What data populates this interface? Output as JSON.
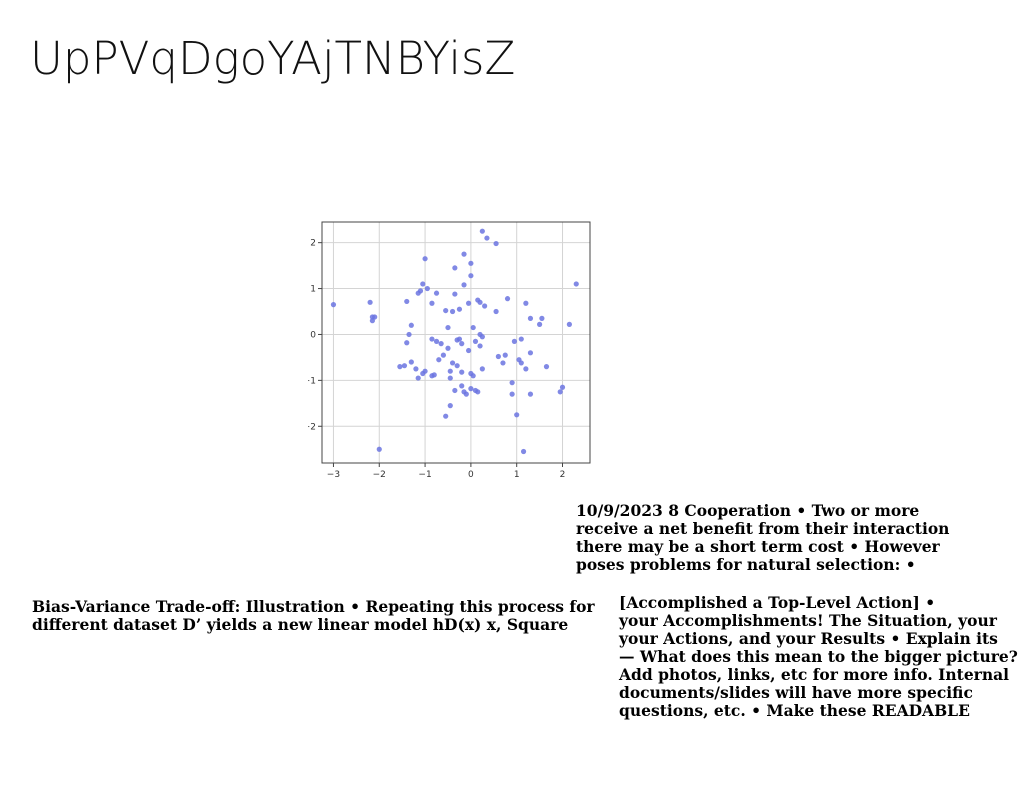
{
  "slide": {
    "title": "UpPVqDgoYAjTNBYisZ",
    "coop_text": "10/9/2023 8 Cooperation • Two or more\nreceive a net benefit from their interaction\nthere may be a short term cost • However\nposes problems for natural selection: •",
    "bias_text": "Bias-Variance Trade-off: Illustration • Repeating this process for\ndifferent dataset D’ yields a new linear model hD(x) x, Square",
    "acc_text": "[Accomplished a Top-Level Action] •\nyour Accomplishments! The Situation, your\nyour Actions, and your Results • Explain its\n— What does this mean to the bigger picture?\nAdd photos, links, etc for more info. Internal\ndocuments/slides will have more specific\nquestions, etc. • Make these READABLE"
  },
  "chart_data": {
    "type": "scatter",
    "xlim": [
      -3.25,
      2.6
    ],
    "ylim": [
      -2.8,
      2.45
    ],
    "xticks": [
      -3,
      -2,
      -1,
      0,
      1,
      2
    ],
    "yticks": [
      -2,
      -1,
      0,
      1,
      2
    ],
    "xtick_labels": [
      "−3",
      "−2",
      "−1",
      "0",
      "1",
      "2"
    ],
    "ytick_labels": [
      "−2",
      "−1",
      "0",
      "1",
      "2"
    ],
    "grid": true,
    "point_color": "#6b74e0",
    "points": [
      [
        -3.0,
        0.65
      ],
      [
        -2.2,
        0.7
      ],
      [
        -2.15,
        0.38
      ],
      [
        -2.1,
        0.38
      ],
      [
        -2.15,
        0.3
      ],
      [
        -2.0,
        -2.5
      ],
      [
        -1.55,
        -0.7
      ],
      [
        -1.45,
        -0.68
      ],
      [
        -1.4,
        -0.18
      ],
      [
        -1.4,
        0.72
      ],
      [
        -1.35,
        0.0
      ],
      [
        -1.3,
        0.2
      ],
      [
        -1.3,
        -0.6
      ],
      [
        -1.2,
        -0.75
      ],
      [
        -1.15,
        -0.95
      ],
      [
        -1.15,
        0.9
      ],
      [
        -1.1,
        0.95
      ],
      [
        -1.05,
        1.1
      ],
      [
        -1.0,
        -0.8
      ],
      [
        -1.05,
        -0.85
      ],
      [
        -1.0,
        1.65
      ],
      [
        -0.95,
        1.0
      ],
      [
        -0.85,
        -0.1
      ],
      [
        -0.85,
        0.68
      ],
      [
        -0.85,
        -0.9
      ],
      [
        -0.8,
        -0.88
      ],
      [
        -0.75,
        0.9
      ],
      [
        -0.75,
        -0.15
      ],
      [
        -0.7,
        -0.55
      ],
      [
        -0.65,
        -0.2
      ],
      [
        -0.6,
        -0.45
      ],
      [
        -0.55,
        0.52
      ],
      [
        -0.55,
        -1.78
      ],
      [
        -0.5,
        0.15
      ],
      [
        -0.5,
        -0.3
      ],
      [
        -0.45,
        -0.8
      ],
      [
        -0.45,
        -0.95
      ],
      [
        -0.45,
        -1.55
      ],
      [
        -0.4,
        -0.62
      ],
      [
        -0.35,
        -1.22
      ],
      [
        -0.35,
        1.45
      ],
      [
        -0.35,
        0.88
      ],
      [
        -0.4,
        0.5
      ],
      [
        -0.3,
        -0.12
      ],
      [
        -0.3,
        -0.68
      ],
      [
        -0.25,
        -0.1
      ],
      [
        -0.25,
        0.55
      ],
      [
        -0.2,
        -1.12
      ],
      [
        -0.2,
        -0.2
      ],
      [
        -0.2,
        -0.82
      ],
      [
        -0.15,
        1.08
      ],
      [
        -0.15,
        1.75
      ],
      [
        -0.15,
        -1.25
      ],
      [
        -0.1,
        -1.3
      ],
      [
        -0.05,
        0.68
      ],
      [
        -0.05,
        -0.35
      ],
      [
        0.0,
        1.55
      ],
      [
        0.0,
        1.28
      ],
      [
        0.0,
        -1.18
      ],
      [
        0.0,
        -0.85
      ],
      [
        0.05,
        0.15
      ],
      [
        0.05,
        -0.9
      ],
      [
        0.1,
        -0.15
      ],
      [
        0.1,
        -1.22
      ],
      [
        0.15,
        -1.25
      ],
      [
        0.15,
        0.75
      ],
      [
        0.2,
        0.7
      ],
      [
        0.2,
        -0.25
      ],
      [
        0.2,
        0.0
      ],
      [
        0.25,
        -0.05
      ],
      [
        0.25,
        2.25
      ],
      [
        0.25,
        -0.75
      ],
      [
        0.3,
        0.62
      ],
      [
        0.35,
        2.1
      ],
      [
        0.55,
        1.98
      ],
      [
        0.55,
        0.5
      ],
      [
        0.6,
        -0.48
      ],
      [
        0.7,
        -0.62
      ],
      [
        0.75,
        -0.45
      ],
      [
        0.8,
        0.78
      ],
      [
        0.9,
        -1.05
      ],
      [
        0.9,
        -1.3
      ],
      [
        0.95,
        -0.15
      ],
      [
        1.0,
        -1.75
      ],
      [
        1.05,
        -0.55
      ],
      [
        1.1,
        -0.1
      ],
      [
        1.1,
        -0.62
      ],
      [
        1.15,
        -2.55
      ],
      [
        1.2,
        -0.75
      ],
      [
        1.2,
        0.68
      ],
      [
        1.3,
        0.35
      ],
      [
        1.3,
        -0.4
      ],
      [
        1.3,
        -1.3
      ],
      [
        1.5,
        0.22
      ],
      [
        1.55,
        0.35
      ],
      [
        1.65,
        -0.7
      ],
      [
        1.95,
        -1.25
      ],
      [
        2.0,
        -1.15
      ],
      [
        2.15,
        0.22
      ],
      [
        2.3,
        1.1
      ]
    ]
  }
}
